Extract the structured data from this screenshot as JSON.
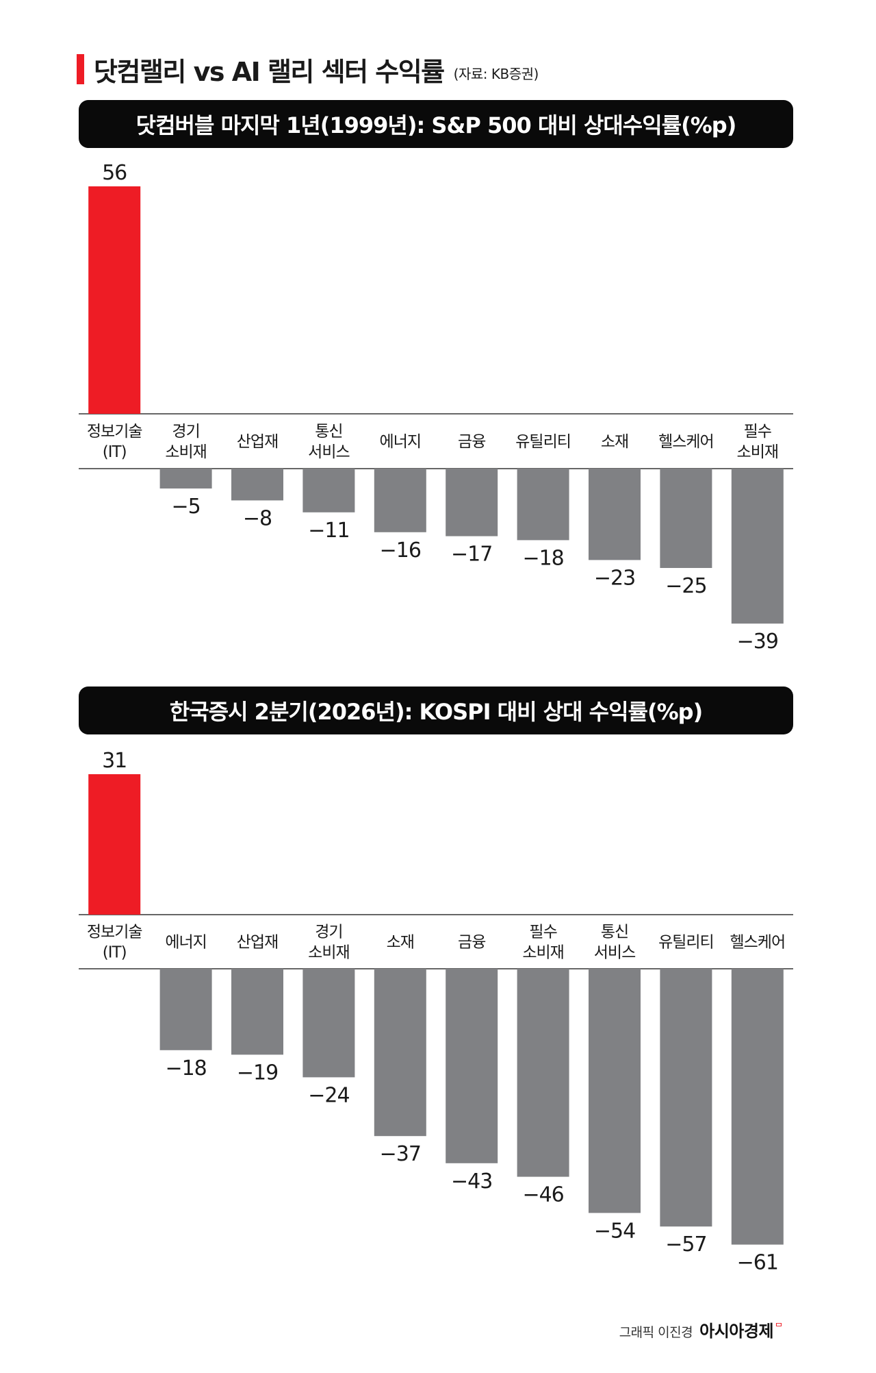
{
  "title": "닷컴랠리 vs AI 랠리 섹터 수익률",
  "source": "(자료: KB증권)",
  "colors": {
    "highlight": "#ee1c25",
    "bar": "#808184",
    "banner": "#0a0a0a"
  },
  "chart_data": [
    {
      "type": "bar",
      "title": "닷컴버블 마지막 1년(1999년): S&P 500 대비 상대수익률(%p)",
      "categories": [
        "정보기술\n(IT)",
        "경기\n소비재",
        "산업재",
        "통신\n서비스",
        "에너지",
        "금융",
        "유틸리티",
        "소재",
        "헬스케어",
        "필수\n소비재"
      ],
      "values": [
        56,
        -5,
        -8,
        -11,
        -16,
        -17,
        -18,
        -23,
        -25,
        -39
      ],
      "value_labels": [
        "56",
        "−5",
        "−8",
        "−11",
        "−16",
        "−17",
        "−18",
        "−23",
        "−25",
        "−39"
      ],
      "highlight_index": 0,
      "xlabel": "",
      "ylabel": "",
      "grid": false
    },
    {
      "type": "bar",
      "title": "한국증시 2분기(2026년): KOSPI 대비 상대 수익률(%p)",
      "categories": [
        "정보기술\n(IT)",
        "에너지",
        "산업재",
        "경기\n소비재",
        "소재",
        "금융",
        "필수\n소비재",
        "통신\n서비스",
        "유틸리티",
        "헬스케어"
      ],
      "values": [
        31,
        -18,
        -19,
        -24,
        -37,
        -43,
        -46,
        -54,
        -57,
        -61
      ],
      "value_labels": [
        "31",
        "−18",
        "−19",
        "−24",
        "−37",
        "−43",
        "−46",
        "−54",
        "−57",
        "−61"
      ],
      "highlight_index": 0,
      "xlabel": "",
      "ylabel": "",
      "grid": false
    }
  ],
  "credit": {
    "text": "그래픽 이진경",
    "brand": "아시아경제",
    "brand_mark": "ᄆ"
  }
}
